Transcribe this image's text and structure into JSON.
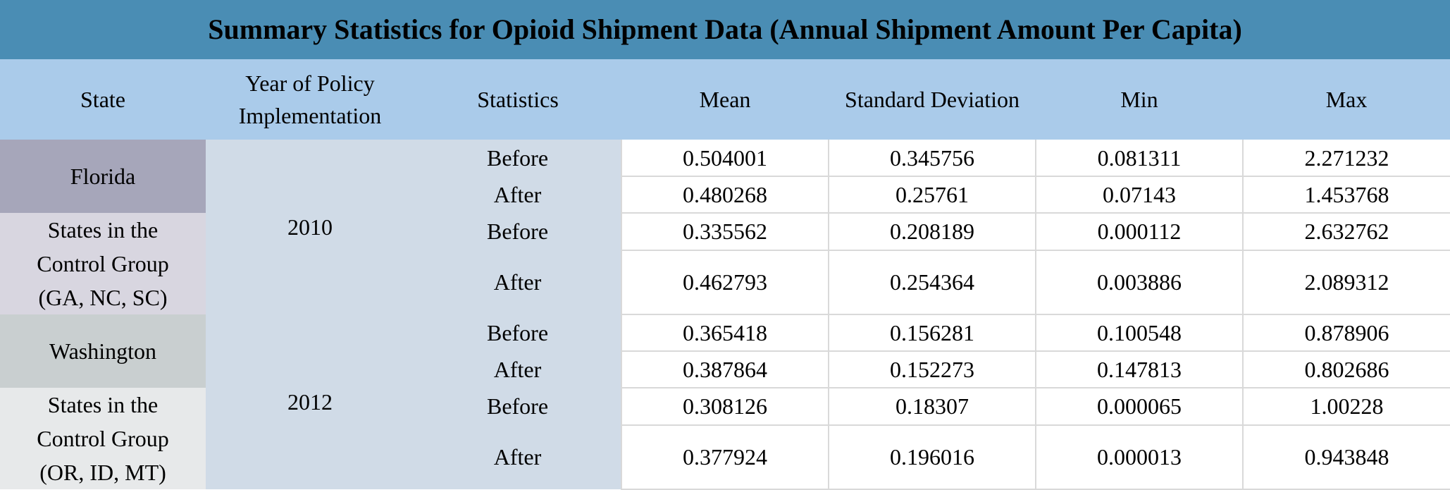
{
  "title": "Summary Statistics for Opioid Shipment Data (Annual Shipment Amount Per Capita)",
  "headers": [
    "State",
    "Year of Policy Implementation",
    "Statistics",
    "Mean",
    "Standard Deviation",
    "Min",
    "Max"
  ],
  "groups": [
    {
      "year": "2010",
      "states": [
        {
          "name": "Florida",
          "rows": [
            {
              "stat": "Before",
              "mean": "0.504001",
              "sd": "0.345756",
              "min": "0.081311",
              "max": "2.271232"
            },
            {
              "stat": "After",
              "mean": "0.480268",
              "sd": "0.25761",
              "min": "0.07143",
              "max": "1.453768"
            }
          ]
        },
        {
          "name": "States in the Control Group (GA, NC, SC)",
          "rows": [
            {
              "stat": "Before",
              "mean": "0.335562",
              "sd": "0.208189",
              "min": "0.000112",
              "max": "2.632762"
            },
            {
              "stat": "After",
              "mean": "0.462793",
              "sd": "0.254364",
              "min": "0.003886",
              "max": "2.089312"
            }
          ]
        }
      ]
    },
    {
      "year": "2012",
      "states": [
        {
          "name": "Washington",
          "rows": [
            {
              "stat": "Before",
              "mean": "0.365418",
              "sd": "0.156281",
              "min": "0.100548",
              "max": "0.878906"
            },
            {
              "stat": "After",
              "mean": "0.387864",
              "sd": "0.152273",
              "min": "0.147813",
              "max": "0.802686"
            }
          ]
        },
        {
          "name": "States in the Control Group (OR, ID, MT)",
          "rows": [
            {
              "stat": "Before",
              "mean": "0.308126",
              "sd": "0.18307",
              "min": "0.000065",
              "max": "1.00228"
            },
            {
              "stat": "After",
              "mean": "0.377924",
              "sd": "0.196016",
              "min": "0.000013",
              "max": "0.943848"
            }
          ]
        }
      ]
    }
  ]
}
